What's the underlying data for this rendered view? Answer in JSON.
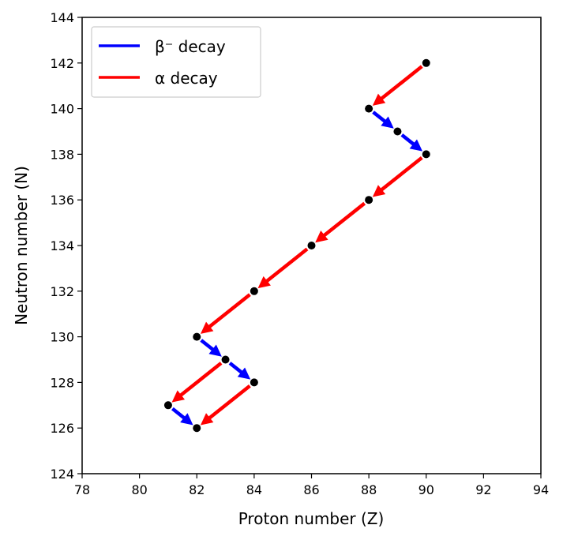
{
  "chart_data": {
    "type": "scatter",
    "title": "",
    "xlabel": "Proton number (Z)",
    "ylabel": "Neutron number (N)",
    "xlim": [
      78,
      94
    ],
    "ylim": [
      124,
      144
    ],
    "xticks": [
      78,
      80,
      82,
      84,
      86,
      88,
      90,
      92,
      94
    ],
    "yticks": [
      124,
      126,
      128,
      130,
      132,
      134,
      136,
      138,
      140,
      142,
      144
    ],
    "grid": false,
    "legend_position": "top-left",
    "legend": [
      {
        "name": "β⁻ decay",
        "color": "#0000ff"
      },
      {
        "name": "α decay",
        "color": "#ff0000"
      }
    ],
    "nuclides": [
      {
        "z": 90,
        "n": 142
      },
      {
        "z": 88,
        "n": 140
      },
      {
        "z": 89,
        "n": 139
      },
      {
        "z": 90,
        "n": 138
      },
      {
        "z": 88,
        "n": 136
      },
      {
        "z": 86,
        "n": 134
      },
      {
        "z": 84,
        "n": 132
      },
      {
        "z": 82,
        "n": 130
      },
      {
        "z": 83,
        "n": 129
      },
      {
        "z": 84,
        "n": 128
      },
      {
        "z": 81,
        "n": 127
      },
      {
        "z": 82,
        "n": 126
      }
    ],
    "series": [
      {
        "name": "β⁻ decay",
        "color": "#0000ff",
        "arrows": [
          {
            "from": [
              88,
              140
            ],
            "to": [
              89,
              139
            ]
          },
          {
            "from": [
              89,
              139
            ],
            "to": [
              90,
              138
            ]
          },
          {
            "from": [
              82,
              130
            ],
            "to": [
              83,
              129
            ]
          },
          {
            "from": [
              83,
              129
            ],
            "to": [
              84,
              128
            ]
          },
          {
            "from": [
              81,
              127
            ],
            "to": [
              82,
              126
            ]
          }
        ]
      },
      {
        "name": "α decay",
        "color": "#ff0000",
        "arrows": [
          {
            "from": [
              90,
              142
            ],
            "to": [
              88,
              140
            ]
          },
          {
            "from": [
              90,
              138
            ],
            "to": [
              88,
              136
            ]
          },
          {
            "from": [
              88,
              136
            ],
            "to": [
              86,
              134
            ]
          },
          {
            "from": [
              86,
              134
            ],
            "to": [
              84,
              132
            ]
          },
          {
            "from": [
              84,
              132
            ],
            "to": [
              82,
              130
            ]
          },
          {
            "from": [
              83,
              129
            ],
            "to": [
              81,
              127
            ]
          },
          {
            "from": [
              84,
              128
            ],
            "to": [
              82,
              126
            ]
          }
        ]
      }
    ]
  }
}
